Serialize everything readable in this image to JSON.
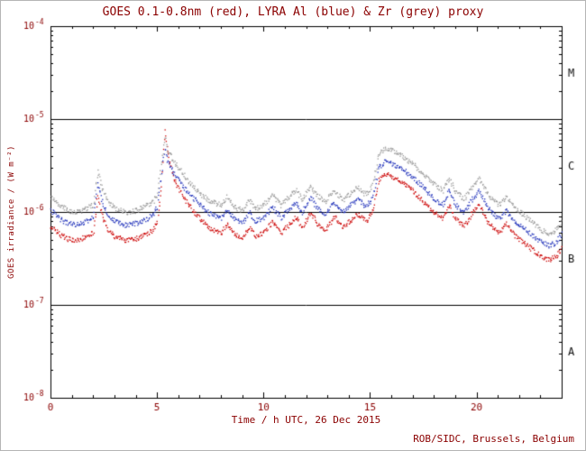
{
  "page": {
    "title": "GOES 0.1-0.8nm (red), LYRA Al (blue) & Zr (grey) proxy",
    "footer": "ROB/SIDC, Brussels, Belgium"
  },
  "chart_data": {
    "type": "scatter",
    "title": "GOES 0.1-0.8nm (red), LYRA Al (blue) & Zr (grey) proxy",
    "xlabel": "Time / h UTC, 26 Dec 2015",
    "ylabel": "GOES irradiance / (W m⁻²)",
    "footer": "ROB/SIDC, Brussels, Belgium",
    "xlim": [
      0,
      24
    ],
    "ylim_log10": [
      -8,
      -4
    ],
    "x_major_ticks": [
      0,
      5,
      10,
      15,
      20
    ],
    "x_minor_step": 1,
    "y_tick_exponents": [
      -4,
      -5,
      -6,
      -7,
      -8
    ],
    "grid": false,
    "hlines": [
      1e-05,
      1e-06,
      1e-07
    ],
    "flare_classes": [
      {
        "label": "M",
        "value": 3.16e-05
      },
      {
        "label": "C",
        "value": 3.16e-06
      },
      {
        "label": "B",
        "value": 3.16e-07
      },
      {
        "label": "A",
        "value": 3.16e-08
      }
    ],
    "colors": {
      "goes": "#cc0000",
      "lyra_al": "#2233bb",
      "lyra_zr": "#999999",
      "axis_text": "#8b0000",
      "frame": "#000000"
    },
    "series": [
      {
        "name": "GOES 0.1-0.8nm",
        "color": "#cc0000",
        "points": [
          [
            0,
            7e-07
          ],
          [
            0.4,
            5.8e-07
          ],
          [
            0.8,
            5.2e-07
          ],
          [
            1.2,
            5e-07
          ],
          [
            1.6,
            5.4e-07
          ],
          [
            2.0,
            6e-07
          ],
          [
            2.2,
            1.5e-06
          ],
          [
            2.4,
            9e-07
          ],
          [
            2.7,
            6.5e-07
          ],
          [
            3.0,
            5.5e-07
          ],
          [
            3.5,
            5e-07
          ],
          [
            4.0,
            5.2e-07
          ],
          [
            4.5,
            5.8e-07
          ],
          [
            4.8,
            6.5e-07
          ],
          [
            5.0,
            8e-07
          ],
          [
            5.2,
            2e-06
          ],
          [
            5.35,
            8e-06
          ],
          [
            5.5,
            4e-06
          ],
          [
            5.8,
            2.2e-06
          ],
          [
            6.2,
            1.5e-06
          ],
          [
            6.6,
            1.1e-06
          ],
          [
            7.0,
            8.5e-07
          ],
          [
            7.5,
            6.5e-07
          ],
          [
            8.0,
            6e-07
          ],
          [
            8.3,
            7.5e-07
          ],
          [
            8.6,
            5.8e-07
          ],
          [
            9.0,
            5.2e-07
          ],
          [
            9.3,
            7e-07
          ],
          [
            9.6,
            5.5e-07
          ],
          [
            10.0,
            6e-07
          ],
          [
            10.4,
            8e-07
          ],
          [
            10.8,
            6e-07
          ],
          [
            11.2,
            7.5e-07
          ],
          [
            11.5,
            9e-07
          ],
          [
            11.8,
            7e-07
          ],
          [
            12.2,
            1e-06
          ],
          [
            12.5,
            7.5e-07
          ],
          [
            12.9,
            6.5e-07
          ],
          [
            13.3,
            9e-07
          ],
          [
            13.7,
            7e-07
          ],
          [
            14.0,
            8e-07
          ],
          [
            14.4,
            9.5e-07
          ],
          [
            14.8,
            8e-07
          ],
          [
            15.1,
            1e-06
          ],
          [
            15.4,
            2.2e-06
          ],
          [
            15.7,
            2.6e-06
          ],
          [
            16.1,
            2.4e-06
          ],
          [
            16.5,
            2.1e-06
          ],
          [
            17.0,
            1.7e-06
          ],
          [
            17.5,
            1.3e-06
          ],
          [
            18.0,
            1e-06
          ],
          [
            18.4,
            8.5e-07
          ],
          [
            18.7,
            1.2e-06
          ],
          [
            19.0,
            8.5e-07
          ],
          [
            19.4,
            7e-07
          ],
          [
            19.8,
            1e-06
          ],
          [
            20.1,
            1.2e-06
          ],
          [
            20.5,
            8e-07
          ],
          [
            21.0,
            6e-07
          ],
          [
            21.4,
            7.5e-07
          ],
          [
            21.8,
            5.5e-07
          ],
          [
            22.2,
            4.8e-07
          ],
          [
            22.6,
            4e-07
          ],
          [
            23.0,
            3.4e-07
          ],
          [
            23.4,
            3.1e-07
          ],
          [
            23.7,
            3.3e-07
          ],
          [
            24.0,
            4.2e-07
          ]
        ]
      },
      {
        "name": "LYRA Al proxy",
        "color": "#2233bb",
        "points": [
          [
            0,
            1.05e-06
          ],
          [
            0.4,
            8.5e-07
          ],
          [
            0.8,
            7.6e-07
          ],
          [
            1.2,
            7.3e-07
          ],
          [
            1.6,
            7.9e-07
          ],
          [
            2.0,
            8.8e-07
          ],
          [
            2.2,
            2e-06
          ],
          [
            2.4,
            1.3e-06
          ],
          [
            2.7,
            9.5e-07
          ],
          [
            3.0,
            8e-07
          ],
          [
            3.5,
            7.3e-07
          ],
          [
            4.0,
            7.6e-07
          ],
          [
            4.5,
            8.5e-07
          ],
          [
            4.8,
            9.5e-07
          ],
          [
            5.0,
            1.15e-06
          ],
          [
            5.2,
            2.6e-06
          ],
          [
            5.35,
            5e-06
          ],
          [
            5.5,
            3.4e-06
          ],
          [
            5.8,
            2.6e-06
          ],
          [
            6.2,
            1.9e-06
          ],
          [
            6.6,
            1.5e-06
          ],
          [
            7.0,
            1.2e-06
          ],
          [
            7.5,
            9.5e-07
          ],
          [
            8.0,
            8.8e-07
          ],
          [
            8.3,
            1.1e-06
          ],
          [
            8.6,
            8.5e-07
          ],
          [
            9.0,
            7.6e-07
          ],
          [
            9.3,
            1e-06
          ],
          [
            9.6,
            8e-07
          ],
          [
            10.0,
            8.8e-07
          ],
          [
            10.4,
            1.15e-06
          ],
          [
            10.8,
            8.8e-07
          ],
          [
            11.2,
            1.1e-06
          ],
          [
            11.5,
            1.3e-06
          ],
          [
            11.8,
            1e-06
          ],
          [
            12.2,
            1.45e-06
          ],
          [
            12.5,
            1.1e-06
          ],
          [
            12.9,
            9.5e-07
          ],
          [
            13.3,
            1.3e-06
          ],
          [
            13.7,
            1e-06
          ],
          [
            14.0,
            1.15e-06
          ],
          [
            14.4,
            1.4e-06
          ],
          [
            14.8,
            1.15e-06
          ],
          [
            15.1,
            1.45e-06
          ],
          [
            15.4,
            3e-06
          ],
          [
            15.7,
            3.6e-06
          ],
          [
            16.1,
            3.3e-06
          ],
          [
            16.5,
            2.9e-06
          ],
          [
            17.0,
            2.4e-06
          ],
          [
            17.5,
            1.85e-06
          ],
          [
            18.0,
            1.4e-06
          ],
          [
            18.4,
            1.2e-06
          ],
          [
            18.7,
            1.7e-06
          ],
          [
            19.0,
            1.2e-06
          ],
          [
            19.4,
            1e-06
          ],
          [
            19.8,
            1.4e-06
          ],
          [
            20.1,
            1.7e-06
          ],
          [
            20.5,
            1.15e-06
          ],
          [
            21.0,
            8.5e-07
          ],
          [
            21.4,
            1.05e-06
          ],
          [
            21.8,
            7.8e-07
          ],
          [
            22.2,
            6.8e-07
          ],
          [
            22.6,
            5.7e-07
          ],
          [
            23.0,
            4.8e-07
          ],
          [
            23.4,
            4.4e-07
          ],
          [
            23.7,
            4.7e-07
          ],
          [
            24.0,
            6e-07
          ]
        ]
      },
      {
        "name": "LYRA Zr proxy",
        "color": "#999999",
        "points": [
          [
            0,
            1.45e-06
          ],
          [
            0.4,
            1.2e-06
          ],
          [
            0.8,
            1.05e-06
          ],
          [
            1.2,
            1e-06
          ],
          [
            1.6,
            1.1e-06
          ],
          [
            2.0,
            1.2e-06
          ],
          [
            2.2,
            2.8e-06
          ],
          [
            2.4,
            1.8e-06
          ],
          [
            2.7,
            1.3e-06
          ],
          [
            3.0,
            1.1e-06
          ],
          [
            3.5,
            1e-06
          ],
          [
            4.0,
            1.05e-06
          ],
          [
            4.5,
            1.2e-06
          ],
          [
            4.8,
            1.3e-06
          ],
          [
            5.0,
            1.6e-06
          ],
          [
            5.2,
            3.5e-06
          ],
          [
            5.35,
            6.5e-06
          ],
          [
            5.5,
            4.5e-06
          ],
          [
            5.8,
            3.5e-06
          ],
          [
            6.2,
            2.6e-06
          ],
          [
            6.6,
            2e-06
          ],
          [
            7.0,
            1.6e-06
          ],
          [
            7.5,
            1.3e-06
          ],
          [
            8.0,
            1.2e-06
          ],
          [
            8.3,
            1.5e-06
          ],
          [
            8.6,
            1.15e-06
          ],
          [
            9.0,
            1.05e-06
          ],
          [
            9.3,
            1.35e-06
          ],
          [
            9.6,
            1.1e-06
          ],
          [
            10.0,
            1.2e-06
          ],
          [
            10.4,
            1.55e-06
          ],
          [
            10.8,
            1.2e-06
          ],
          [
            11.2,
            1.5e-06
          ],
          [
            11.5,
            1.75e-06
          ],
          [
            11.8,
            1.35e-06
          ],
          [
            12.2,
            1.95e-06
          ],
          [
            12.5,
            1.5e-06
          ],
          [
            12.9,
            1.3e-06
          ],
          [
            13.3,
            1.75e-06
          ],
          [
            13.7,
            1.35e-06
          ],
          [
            14.0,
            1.55e-06
          ],
          [
            14.4,
            1.85e-06
          ],
          [
            14.8,
            1.55e-06
          ],
          [
            15.1,
            1.95e-06
          ],
          [
            15.4,
            4.2e-06
          ],
          [
            15.7,
            5e-06
          ],
          [
            16.1,
            4.6e-06
          ],
          [
            16.5,
            4e-06
          ],
          [
            17.0,
            3.3e-06
          ],
          [
            17.5,
            2.6e-06
          ],
          [
            18.0,
            2e-06
          ],
          [
            18.4,
            1.7e-06
          ],
          [
            18.7,
            2.3e-06
          ],
          [
            19.0,
            1.7e-06
          ],
          [
            19.4,
            1.4e-06
          ],
          [
            19.8,
            1.9e-06
          ],
          [
            20.1,
            2.3e-06
          ],
          [
            20.5,
            1.6e-06
          ],
          [
            21.0,
            1.2e-06
          ],
          [
            21.4,
            1.45e-06
          ],
          [
            21.8,
            1.1e-06
          ],
          [
            22.2,
            9.3e-07
          ],
          [
            22.6,
            7.8e-07
          ],
          [
            23.0,
            6.5e-07
          ],
          [
            23.4,
            6e-07
          ],
          [
            23.7,
            6.4e-07
          ],
          [
            24.0,
            8e-07
          ]
        ]
      }
    ]
  }
}
